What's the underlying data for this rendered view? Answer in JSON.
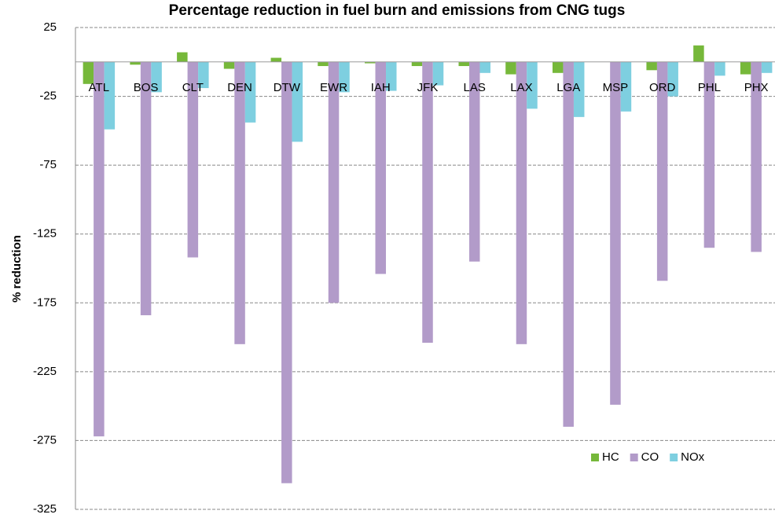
{
  "chart_data": {
    "type": "bar",
    "title": "Percentage reduction in fuel burn and emissions from CNG tugs",
    "y_label": "% reduction",
    "categories": [
      "ATL",
      "BOS",
      "CLT",
      "DEN",
      "DTW",
      "EWR",
      "IAH",
      "JFK",
      "LAS",
      "LAX",
      "LGA",
      "MSP",
      "ORD",
      "PHL",
      "PHX"
    ],
    "series": [
      {
        "name": "HC",
        "color": "#76b83a",
        "values": [
          -16,
          -2,
          7,
          -5,
          3,
          -3,
          -1,
          -3,
          -3,
          -9,
          -8,
          0,
          -6,
          12,
          -9
        ]
      },
      {
        "name": "CO",
        "color": "#b29bc9",
        "values": [
          -272,
          -184,
          -142,
          -205,
          -306,
          -175,
          -154,
          -204,
          -145,
          -205,
          -265,
          -249,
          -159,
          -135,
          -138
        ]
      },
      {
        "name": "NOx",
        "color": "#7ecfe0",
        "values": [
          -49,
          -22,
          -19,
          -44,
          -58,
          -22,
          -21,
          -17,
          -8,
          -34,
          -40,
          -36,
          -25,
          -10,
          -8
        ]
      }
    ],
    "ylim": [
      -325,
      25
    ],
    "yticks": [
      25,
      -25,
      -75,
      -125,
      -175,
      -225,
      -275,
      -325
    ],
    "grid": true,
    "legend": "lower right"
  }
}
